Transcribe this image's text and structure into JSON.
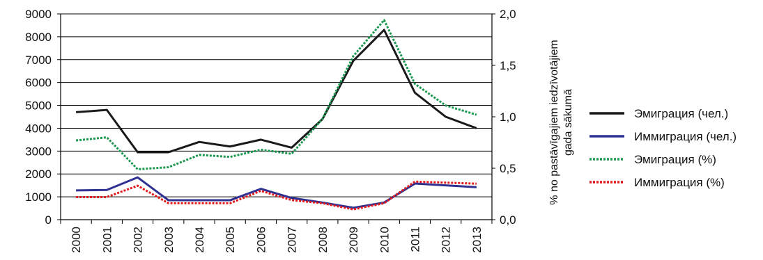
{
  "chart_data": {
    "type": "line",
    "title": "",
    "categories": [
      "2000",
      "2001",
      "2002",
      "2003",
      "2004",
      "2005",
      "2006",
      "2007",
      "2008",
      "2009",
      "2010",
      "2011",
      "2012",
      "2013"
    ],
    "y_left": {
      "label": "",
      "min": 0,
      "max": 9000,
      "ticks": [
        0,
        1000,
        2000,
        3000,
        4000,
        5000,
        6000,
        7000,
        8000,
        9000
      ],
      "tick_labels": [
        "0",
        "1000",
        "2000",
        "3000",
        "4000",
        "5000",
        "6000",
        "7000",
        "8000",
        "9000"
      ]
    },
    "y_right": {
      "label_line1": "% no pastāvīgajiem iedzīvotājiem",
      "label_line2": "gada sākumā",
      "min": 0,
      "max": 2.0,
      "ticks": [
        0,
        0.5,
        1.0,
        1.5,
        2.0
      ],
      "tick_labels": [
        "0,0",
        "0,5",
        "1,0",
        "1,5",
        "2,0"
      ]
    },
    "grid": true,
    "legend_position": "right",
    "series": [
      {
        "name": "Эмиграция (чел.)",
        "axis": "left",
        "style": "solid",
        "color": "#1a1a1a",
        "values": [
          4700,
          4800,
          2950,
          2950,
          3400,
          3200,
          3500,
          3150,
          4400,
          6950,
          8300,
          5550,
          4500,
          4000
        ]
      },
      {
        "name": "Иммиграция (чел.)",
        "axis": "left",
        "style": "solid",
        "color": "#2e3192",
        "values": [
          1280,
          1300,
          1850,
          850,
          850,
          850,
          1350,
          950,
          750,
          520,
          750,
          1580,
          1500,
          1420
        ]
      },
      {
        "name": "Эмиграция (%)",
        "axis": "right",
        "style": "dotted",
        "color": "#1a9850",
        "values": [
          0.77,
          0.8,
          0.49,
          0.51,
          0.63,
          0.61,
          0.68,
          0.64,
          0.98,
          1.59,
          1.94,
          1.32,
          1.11,
          1.02
        ]
      },
      {
        "name": "Иммиграция (%)",
        "axis": "right",
        "style": "dotted",
        "color": "#e31a1c",
        "values": [
          0.22,
          0.22,
          0.33,
          0.16,
          0.16,
          0.16,
          0.28,
          0.19,
          0.16,
          0.1,
          0.16,
          0.37,
          0.36,
          0.35
        ]
      }
    ]
  }
}
